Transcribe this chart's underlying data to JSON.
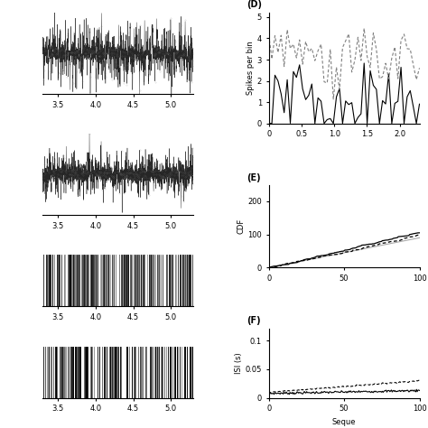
{
  "panel_D_label": "(D)",
  "panel_E_label": "(E)",
  "panel_F_label": "(F)",
  "D_xlabel": "",
  "D_ylabel": "Spikes per bin",
  "D_xlim": [
    0,
    2.3
  ],
  "D_ylim": [
    0,
    5.2
  ],
  "D_xticks": [
    0,
    0.5,
    1.0,
    1.5,
    2.0
  ],
  "E_xlabel": "",
  "E_ylabel": "CDF",
  "E_xlim": [
    0,
    100
  ],
  "E_ylim": [
    0,
    250
  ],
  "E_yticks": [
    0,
    100,
    200
  ],
  "E_xticks": [
    0,
    50,
    100
  ],
  "F_xlabel": "Seque",
  "F_ylabel": "ISI (s)",
  "F_xlim": [
    0,
    100
  ],
  "F_ylim": [
    0,
    0.12
  ],
  "F_yticks": [
    0,
    0.05,
    0.1
  ],
  "F_xticks": [
    0,
    50,
    100
  ],
  "left_xlim": [
    3.3,
    5.3
  ],
  "left_xticks": [
    3.5,
    4.0,
    4.5,
    5.0
  ],
  "background_color": "#ffffff",
  "line_color_black": "#000000",
  "line_color_gray": "#aaaaaa",
  "line_color_lightgray": "#cccccc"
}
